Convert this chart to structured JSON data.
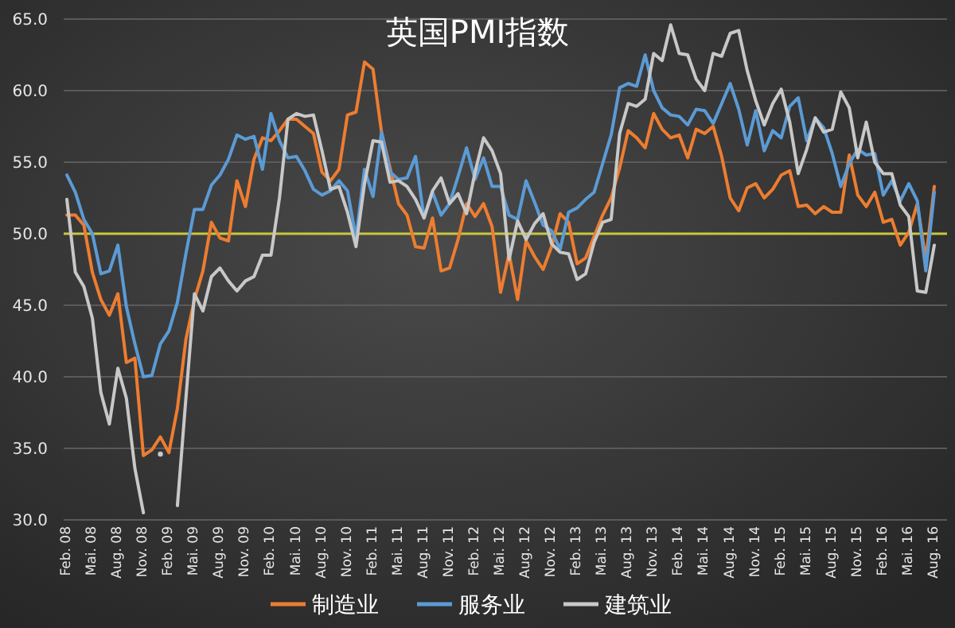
{
  "chart_data": {
    "type": "line",
    "title": "英国PMI指数",
    "categories": [
      "Feb. 08",
      null,
      null,
      "Mai. 08",
      null,
      null,
      "Aug. 08",
      null,
      null,
      "Nov. 08",
      null,
      null,
      "Feb. 09",
      null,
      null,
      "Mai. 09",
      null,
      null,
      "Aug. 09",
      null,
      null,
      "Nov. 09",
      null,
      null,
      "Feb. 10",
      null,
      null,
      "Mai. 10",
      null,
      null,
      "Aug. 10",
      null,
      null,
      "Nov. 10",
      null,
      null,
      "Feb. 11",
      null,
      null,
      "Mai. 11",
      null,
      null,
      "Aug. 11",
      null,
      null,
      "Nov. 11",
      null,
      null,
      "Feb. 12",
      null,
      null,
      "Mai. 12",
      null,
      null,
      "Aug. 12",
      null,
      null,
      "Nov. 12",
      null,
      null,
      "Feb. 13",
      null,
      null,
      "Mai. 13",
      null,
      null,
      "Aug. 13",
      null,
      null,
      "Nov. 13",
      null,
      null,
      "Feb. 14",
      null,
      null,
      "Mai. 14",
      null,
      null,
      "Aug. 14",
      null,
      null,
      "Nov. 14",
      null,
      null,
      "Feb. 15",
      null,
      null,
      "Mai. 15",
      null,
      null,
      "Aug. 15",
      null,
      null,
      "Nov. 15",
      null,
      null,
      "Feb. 16",
      null,
      null,
      "Mai. 16",
      null,
      null,
      "Aug. 16"
    ],
    "series": [
      {
        "name": "制造业",
        "color": "#ed7d31",
        "values": [
          51.3,
          51.3,
          50.6,
          47.3,
          45.4,
          44.3,
          45.8,
          41.0,
          41.3,
          34.5,
          34.9,
          35.8,
          34.7,
          37.8,
          42.6,
          45.4,
          47.4,
          50.8,
          49.7,
          49.5,
          53.7,
          51.9,
          55.2,
          56.7,
          56.5,
          57.2,
          58.0,
          58.0,
          57.5,
          57.0,
          54.3,
          53.7,
          54.5,
          58.3,
          58.5,
          62.0,
          61.5,
          57.1,
          54.6,
          52.1,
          51.3,
          49.1,
          49.0,
          51.1,
          47.4,
          47.6,
          49.6,
          52.1,
          51.2,
          52.1,
          50.5,
          45.9,
          48.6,
          45.4,
          49.5,
          48.4,
          47.5,
          49.1,
          51.4,
          50.8,
          47.9,
          48.3,
          49.8,
          51.3,
          52.5,
          54.6,
          57.2,
          56.7,
          56.0,
          58.4,
          57.3,
          56.7,
          56.9,
          55.3,
          57.3,
          57.0,
          57.5,
          55.4,
          52.5,
          51.6,
          53.2,
          53.5,
          52.5,
          53.1,
          54.1,
          54.4,
          51.9,
          52.0,
          51.4,
          51.9,
          51.5,
          51.5,
          55.5,
          52.7,
          51.9,
          52.9,
          50.8,
          51.0,
          49.2,
          50.1,
          52.1,
          48.2,
          53.3
        ]
      },
      {
        "name": "服务业",
        "color": "#5b9bd5",
        "values": [
          54.1,
          52.9,
          51.0,
          50.0,
          47.2,
          47.4,
          49.2,
          44.9,
          42.3,
          40.0,
          40.1,
          42.3,
          43.2,
          45.2,
          48.6,
          51.7,
          51.7,
          53.4,
          54.1,
          55.2,
          56.9,
          56.6,
          56.8,
          54.5,
          58.4,
          56.5,
          55.3,
          55.4,
          54.4,
          53.1,
          52.7,
          53.0,
          53.7,
          53.0,
          49.7,
          54.5,
          52.6,
          57.1,
          54.3,
          53.8,
          53.9,
          55.4,
          51.1,
          52.9,
          51.3,
          52.1,
          54.0,
          56.0,
          53.8,
          55.3,
          53.3,
          53.3,
          51.3,
          51.0,
          53.7,
          52.2,
          50.6,
          50.2,
          48.9,
          51.5,
          51.8,
          52.4,
          52.9,
          54.9,
          56.9,
          60.2,
          60.5,
          60.3,
          62.5,
          60.0,
          58.8,
          58.3,
          58.2,
          57.6,
          58.7,
          58.6,
          57.7,
          59.1,
          60.5,
          58.7,
          56.2,
          58.6,
          55.8,
          57.2,
          56.7,
          58.9,
          59.5,
          56.5,
          58.1,
          57.4,
          55.6,
          53.3,
          54.9,
          55.9,
          55.5,
          55.6,
          52.7,
          53.7,
          52.3,
          53.5,
          52.3,
          47.4,
          52.9
        ]
      },
      {
        "name": "建筑业",
        "color": "#c8c8c8",
        "values": [
          52.4,
          47.3,
          46.3,
          44.1,
          38.9,
          36.7,
          40.6,
          38.5,
          33.6,
          30.5,
          null,
          34.6,
          null,
          31.0,
          38.5,
          45.8,
          44.6,
          47.0,
          47.6,
          46.7,
          46.0,
          46.7,
          47.0,
          48.5,
          48.5,
          52.5,
          58.0,
          58.4,
          58.2,
          58.3,
          55.8,
          53.1,
          53.3,
          51.5,
          49.1,
          53.5,
          56.5,
          56.4,
          53.6,
          53.7,
          53.3,
          52.4,
          51.1,
          53.0,
          53.9,
          52.1,
          52.8,
          51.4,
          54.3,
          56.7,
          55.8,
          54.2,
          48.2,
          50.9,
          49.6,
          50.7,
          51.4,
          49.3,
          48.7,
          48.6,
          46.8,
          47.2,
          49.4,
          50.8,
          51.0,
          57.0,
          59.1,
          58.9,
          59.4,
          62.6,
          62.1,
          64.6,
          62.6,
          62.5,
          60.8,
          60.0,
          62.6,
          62.4,
          64.0,
          64.2,
          61.4,
          59.3,
          57.6,
          59.1,
          60.1,
          57.8,
          54.2,
          55.9,
          58.1,
          57.1,
          57.3,
          59.9,
          58.8,
          55.3,
          57.8,
          55.0,
          54.2,
          54.2,
          52.0,
          51.2,
          46.0,
          45.9,
          49.2
        ]
      }
    ],
    "ylim": [
      30,
      65
    ],
    "yticks": [
      {
        "value": 30,
        "label": "30.0"
      },
      {
        "value": 35,
        "label": "35.0"
      },
      {
        "value": 40,
        "label": "40.0"
      },
      {
        "value": 45,
        "label": "45.0"
      },
      {
        "value": 50,
        "label": "50.0"
      },
      {
        "value": 55,
        "label": "55.0"
      },
      {
        "value": 60,
        "label": "60.0"
      },
      {
        "value": 65,
        "label": "65.0"
      }
    ],
    "grid": "y",
    "legend": "bottom",
    "marker": "none",
    "line_style": "solid",
    "ref_lines": [
      {
        "axis": "y",
        "value": 50,
        "color": "#c8c83c"
      }
    ]
  }
}
